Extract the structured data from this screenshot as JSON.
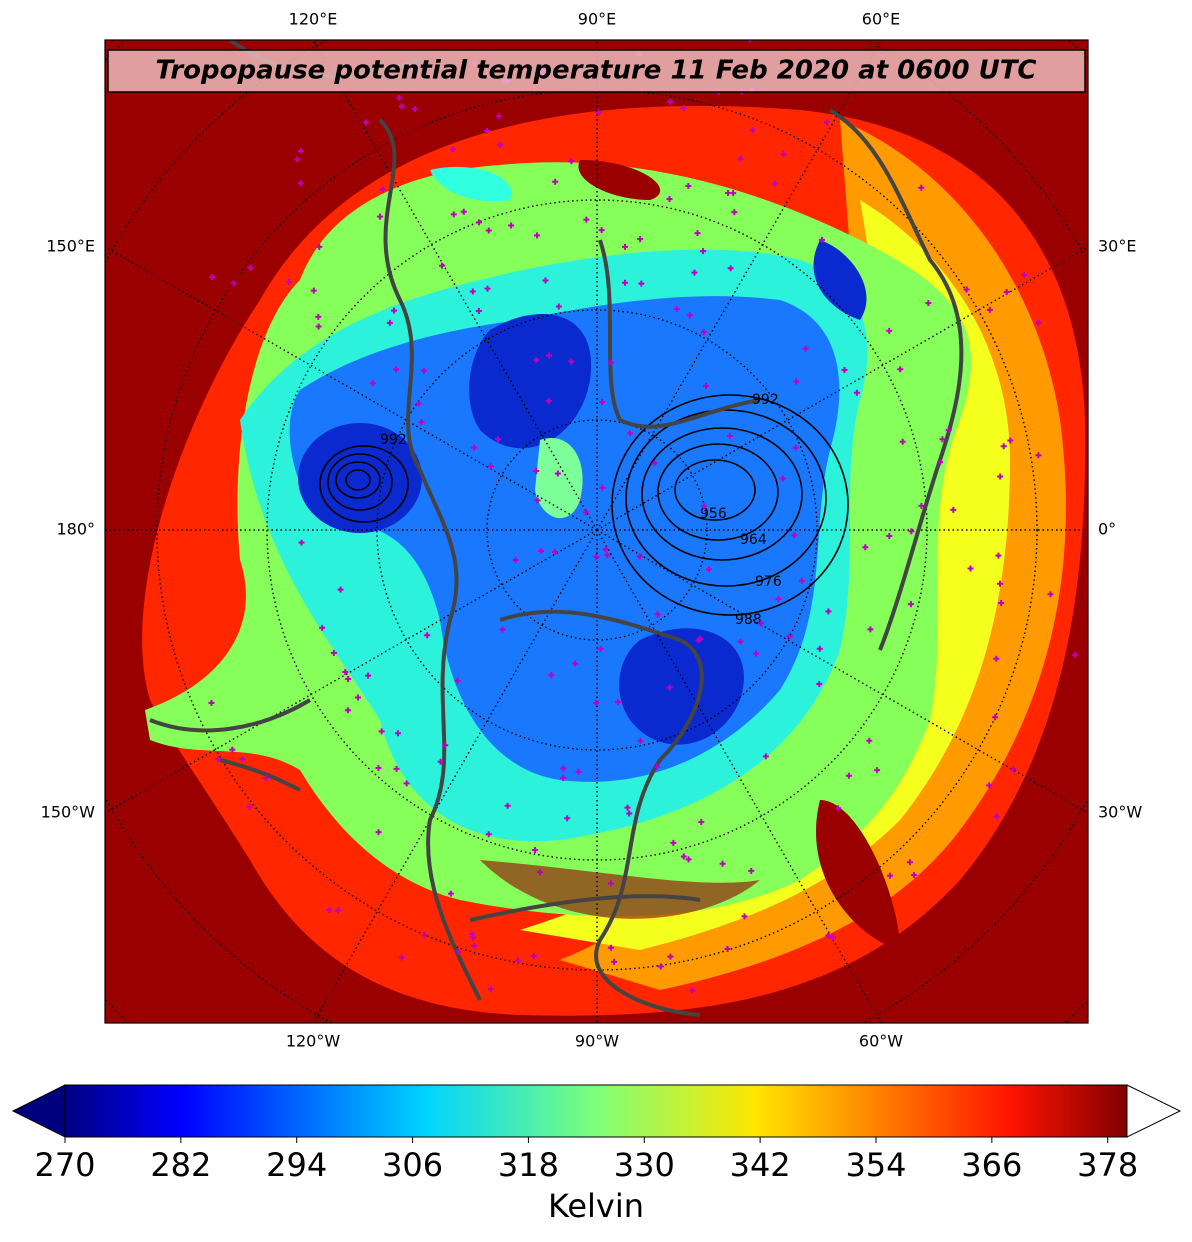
{
  "title": "Tropopause potential temperature 11 Feb 2020 at 0600 UTC",
  "map": {
    "top_labels": [
      "120°E",
      "90°E",
      "60°E"
    ],
    "bottom_labels": [
      "120°W",
      "90°W",
      "60°W"
    ],
    "left_labels": [
      "150°E",
      "180°",
      "150°W"
    ],
    "right_labels": [
      "30°E",
      "0°",
      "30°W"
    ],
    "contour_labels": [
      "992",
      "956",
      "964",
      "976",
      "988"
    ]
  },
  "colorbar": {
    "lim": [
      270,
      380
    ],
    "ticks": [
      270,
      282,
      294,
      306,
      318,
      330,
      342,
      354,
      366,
      378
    ],
    "label": "Kelvin"
  }
}
